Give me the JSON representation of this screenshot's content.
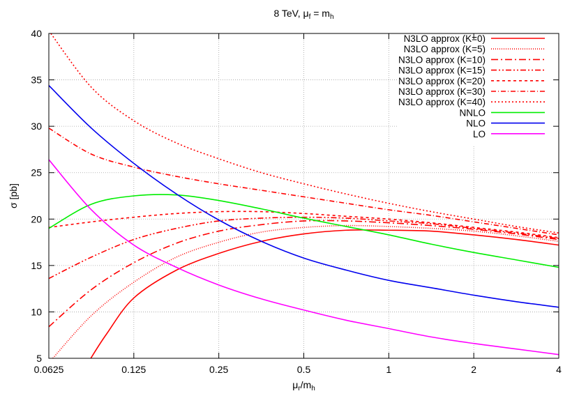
{
  "chart_data": {
    "type": "line",
    "title_parts": {
      "base": "8 TeV, μ",
      "sub1": "f",
      "mid": " = m",
      "sub2": "h"
    },
    "xlabel_parts": {
      "base": "μ",
      "sub1": "r",
      "mid": "/m",
      "sub2": "h"
    },
    "ylabel": "σ [pb]",
    "x_scale": "log2",
    "xlim": [
      0.0625,
      4
    ],
    "ylim": [
      5,
      40
    ],
    "x_ticks": [
      0.0625,
      0.125,
      0.25,
      0.5,
      1,
      2,
      4
    ],
    "x_tick_labels": [
      "0.0625",
      "0.125",
      "0.25",
      "0.5",
      "1",
      "2",
      "4"
    ],
    "y_ticks": [
      5,
      10,
      15,
      20,
      25,
      30,
      35,
      40
    ],
    "y_tick_labels": [
      "5",
      "10",
      "15",
      "20",
      "25",
      "30",
      "35",
      "40"
    ],
    "grid": true,
    "legend_position": "top-right",
    "series": [
      {
        "name": "N3LO approx (K=0)",
        "color": "#ff0000",
        "dash": "solid",
        "points": [
          [
            0.088,
            5.0
          ],
          [
            0.1,
            7.6
          ],
          [
            0.125,
            11.5
          ],
          [
            0.177,
            14.5
          ],
          [
            0.25,
            16.3
          ],
          [
            0.354,
            17.6
          ],
          [
            0.5,
            18.4
          ],
          [
            0.707,
            18.8
          ],
          [
            1,
            18.8
          ],
          [
            1.414,
            18.7
          ],
          [
            2,
            18.3
          ],
          [
            2.83,
            17.8
          ],
          [
            4,
            17.2
          ]
        ]
      },
      {
        "name": "N3LO approx (K=5)",
        "color": "#ff0000",
        "dash": "1,2",
        "points": [
          [
            0.0625,
            4.5
          ],
          [
            0.0884,
            9.6
          ],
          [
            0.125,
            13.2
          ],
          [
            0.177,
            15.9
          ],
          [
            0.25,
            17.5
          ],
          [
            0.354,
            18.6
          ],
          [
            0.5,
            19.1
          ],
          [
            0.707,
            19.3
          ],
          [
            1,
            19.2
          ],
          [
            1.414,
            19.0
          ],
          [
            2,
            18.7
          ],
          [
            2.83,
            18.2
          ],
          [
            4,
            17.6
          ]
        ]
      },
      {
        "name": "N3LO approx (K=10)",
        "color": "#ff0000",
        "dash": "10,4,2,4",
        "points": [
          [
            0.0625,
            8.4
          ],
          [
            0.0884,
            12.4
          ],
          [
            0.125,
            15.3
          ],
          [
            0.177,
            17.4
          ],
          [
            0.25,
            18.7
          ],
          [
            0.354,
            19.4
          ],
          [
            0.5,
            19.8
          ],
          [
            0.707,
            19.8
          ],
          [
            1,
            19.6
          ],
          [
            1.414,
            19.3
          ],
          [
            2,
            18.9
          ],
          [
            2.83,
            18.4
          ],
          [
            4,
            17.8
          ]
        ]
      },
      {
        "name": "N3LO approx (K=15)",
        "color": "#ff0000",
        "dash": "8,3,2,3,2,3",
        "points": [
          [
            0.0625,
            13.6
          ],
          [
            0.0884,
            15.9
          ],
          [
            0.125,
            17.8
          ],
          [
            0.177,
            19.0
          ],
          [
            0.25,
            19.8
          ],
          [
            0.354,
            20.1
          ],
          [
            0.5,
            20.2
          ],
          [
            0.707,
            20.1
          ],
          [
            1,
            19.8
          ],
          [
            1.414,
            19.5
          ],
          [
            2,
            19.0
          ],
          [
            2.83,
            18.5
          ],
          [
            4,
            17.9
          ]
        ]
      },
      {
        "name": "N3LO approx (K=20)",
        "color": "#ff0000",
        "dash": "4,4",
        "points": [
          [
            0.0625,
            19.1
          ],
          [
            0.0884,
            19.7
          ],
          [
            0.125,
            20.2
          ],
          [
            0.177,
            20.6
          ],
          [
            0.25,
            20.8
          ],
          [
            0.354,
            20.8
          ],
          [
            0.5,
            20.6
          ],
          [
            0.707,
            20.3
          ],
          [
            1,
            20.0
          ],
          [
            1.414,
            19.6
          ],
          [
            2,
            19.1
          ],
          [
            2.83,
            18.6
          ],
          [
            4,
            18.0
          ]
        ]
      },
      {
        "name": "N3LO approx (K=30)",
        "color": "#ff0000",
        "dash": "7,3,1,3",
        "points": [
          [
            0.0625,
            29.8
          ],
          [
            0.0884,
            27.0
          ],
          [
            0.125,
            25.6
          ],
          [
            0.177,
            24.6
          ],
          [
            0.25,
            23.8
          ],
          [
            0.354,
            23.1
          ],
          [
            0.5,
            22.4
          ],
          [
            0.707,
            21.7
          ],
          [
            1,
            21.0
          ],
          [
            1.414,
            20.4
          ],
          [
            2,
            19.7
          ],
          [
            2.83,
            19.0
          ],
          [
            4,
            18.3
          ]
        ]
      },
      {
        "name": "N3LO approx (K=40)",
        "color": "#ff0000",
        "dash": "2,3",
        "points": [
          [
            0.0625,
            40.3
          ],
          [
            0.0884,
            34.2
          ],
          [
            0.125,
            30.6
          ],
          [
            0.177,
            28.2
          ],
          [
            0.25,
            26.5
          ],
          [
            0.354,
            25.0
          ],
          [
            0.5,
            23.8
          ],
          [
            0.707,
            22.7
          ],
          [
            1,
            21.7
          ],
          [
            1.414,
            20.8
          ],
          [
            2,
            20.0
          ],
          [
            2.83,
            19.2
          ],
          [
            4,
            18.5
          ]
        ]
      },
      {
        "name": "NNLO",
        "color": "#00ee00",
        "dash": "solid",
        "points": [
          [
            0.0625,
            19.0
          ],
          [
            0.0884,
            21.6
          ],
          [
            0.125,
            22.5
          ],
          [
            0.177,
            22.6
          ],
          [
            0.25,
            22.0
          ],
          [
            0.354,
            21.1
          ],
          [
            0.5,
            20.1
          ],
          [
            0.707,
            19.2
          ],
          [
            1,
            18.3
          ],
          [
            1.414,
            17.3
          ],
          [
            2,
            16.4
          ],
          [
            2.83,
            15.6
          ],
          [
            4,
            14.8
          ]
        ]
      },
      {
        "name": "NLO",
        "color": "#0000ee",
        "dash": "solid",
        "points": [
          [
            0.0625,
            34.4
          ],
          [
            0.0884,
            29.8
          ],
          [
            0.125,
            26.0
          ],
          [
            0.177,
            22.7
          ],
          [
            0.25,
            19.9
          ],
          [
            0.354,
            17.6
          ],
          [
            0.5,
            15.8
          ],
          [
            0.707,
            14.5
          ],
          [
            1,
            13.4
          ],
          [
            1.414,
            12.6
          ],
          [
            2,
            11.8
          ],
          [
            2.83,
            11.1
          ],
          [
            4,
            10.5
          ]
        ]
      },
      {
        "name": "LO",
        "color": "#ff00ff",
        "dash": "solid",
        "points": [
          [
            0.0625,
            26.4
          ],
          [
            0.0884,
            21.0
          ],
          [
            0.125,
            17.2
          ],
          [
            0.177,
            14.8
          ],
          [
            0.25,
            12.9
          ],
          [
            0.354,
            11.4
          ],
          [
            0.5,
            10.2
          ],
          [
            0.707,
            9.1
          ],
          [
            1,
            8.2
          ],
          [
            1.414,
            7.3
          ],
          [
            2,
            6.6
          ],
          [
            2.83,
            6.0
          ],
          [
            4,
            5.4
          ]
        ]
      }
    ]
  }
}
